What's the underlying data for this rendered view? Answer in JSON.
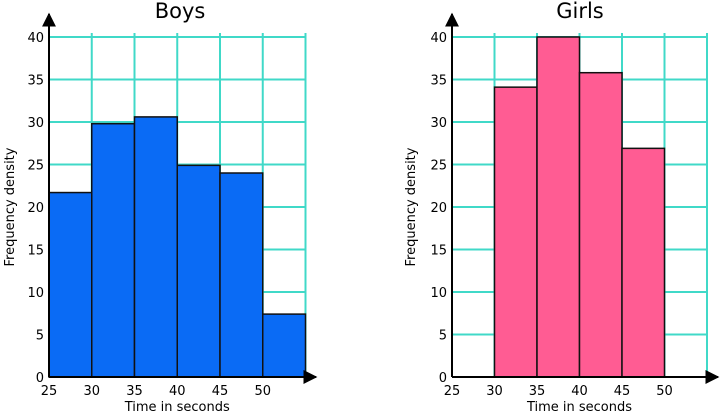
{
  "chart_data": [
    {
      "type": "histogram",
      "title": "Boys",
      "xlabel": "Time in seconds",
      "ylabel": "Frequency density",
      "xlim": [
        25,
        55
      ],
      "ylim": [
        0,
        40
      ],
      "x_ticks": [
        "25",
        "30",
        "35",
        "40",
        "45",
        "50"
      ],
      "y_ticks": [
        "0",
        "5",
        "10",
        "15",
        "20",
        "25",
        "30",
        "35",
        "40"
      ],
      "grid": true,
      "bins": [
        {
          "from": 25,
          "to": 30,
          "value": 21.7
        },
        {
          "from": 30,
          "to": 35,
          "value": 29.8
        },
        {
          "from": 35,
          "to": 40,
          "value": 30.6
        },
        {
          "from": 40,
          "to": 45,
          "value": 24.9
        },
        {
          "from": 45,
          "to": 50,
          "value": 24.0
        },
        {
          "from": 50,
          "to": 55,
          "value": 7.4
        }
      ],
      "colors": {
        "bar": "#0a6bf5",
        "grid": "#40d9c8",
        "edge": "#111111"
      }
    },
    {
      "type": "histogram",
      "title": "Girls",
      "xlabel": "Time in seconds",
      "ylabel": "Frequency density",
      "xlim": [
        25,
        55
      ],
      "ylim": [
        0,
        40
      ],
      "x_ticks": [
        "25",
        "30",
        "35",
        "40",
        "45",
        "50"
      ],
      "y_ticks": [
        "0",
        "5",
        "10",
        "15",
        "20",
        "25",
        "30",
        "35",
        "40"
      ],
      "grid": true,
      "bins": [
        {
          "from": 30,
          "to": 35,
          "value": 34.1
        },
        {
          "from": 35,
          "to": 40,
          "value": 40.0
        },
        {
          "from": 40,
          "to": 45,
          "value": 35.8
        },
        {
          "from": 45,
          "to": 50,
          "value": 26.9
        }
      ],
      "colors": {
        "bar": "#ff5c93",
        "grid": "#40d9c8",
        "edge": "#111111"
      }
    }
  ]
}
